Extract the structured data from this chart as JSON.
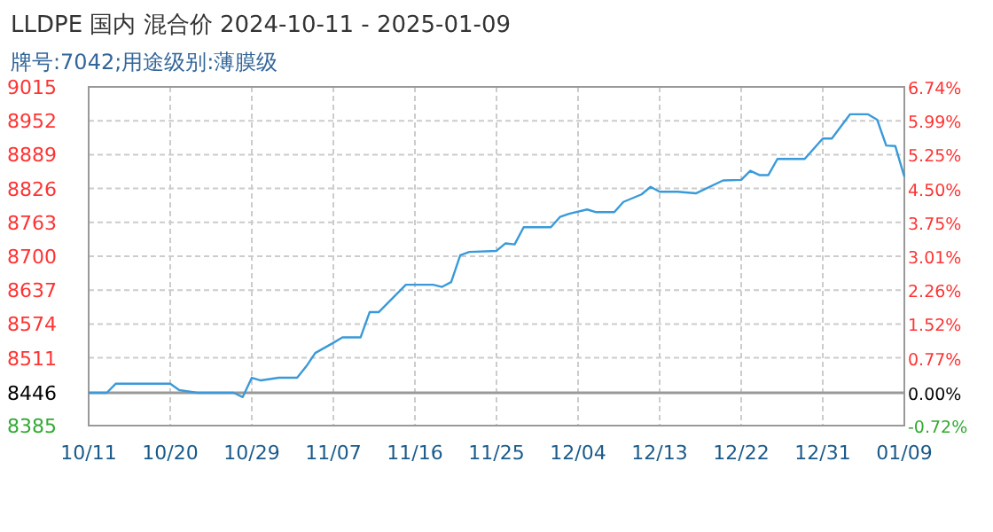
{
  "chart_data": {
    "type": "line",
    "title": "LLDPE 国内 混合价 2024-10-11 - 2025-01-09",
    "subtitle": "牌号:7042;用途级别:薄膜级",
    "x": [
      "2024-10-11",
      "2024-10-13",
      "2024-10-14",
      "2024-10-20",
      "2024-10-21",
      "2024-10-23",
      "2024-10-27",
      "2024-10-28",
      "2024-10-29",
      "2024-10-30",
      "2024-11-01",
      "2024-11-03",
      "2024-11-04",
      "2024-11-05",
      "2024-11-07",
      "2024-11-08",
      "2024-11-10",
      "2024-11-11",
      "2024-11-12",
      "2024-11-15",
      "2024-11-18",
      "2024-11-19",
      "2024-11-20",
      "2024-11-21",
      "2024-11-22",
      "2024-11-25",
      "2024-11-26",
      "2024-11-27",
      "2024-11-28",
      "2024-12-01",
      "2024-12-02",
      "2024-12-03",
      "2024-12-05",
      "2024-12-06",
      "2024-12-08",
      "2024-12-09",
      "2024-12-11",
      "2024-12-12",
      "2024-12-13",
      "2024-12-15",
      "2024-12-17",
      "2024-12-20",
      "2024-12-22",
      "2024-12-23",
      "2024-12-24",
      "2024-12-25",
      "2024-12-26",
      "2024-12-29",
      "2024-12-31",
      "2025-01-01",
      "2025-01-03",
      "2025-01-05",
      "2025-01-06",
      "2025-01-07",
      "2025-01-08",
      "2025-01-09"
    ],
    "series": [
      {
        "color": "#3a9ad9",
        "values": [
          8446,
          8446,
          8463,
          8463,
          8451,
          8446,
          8446,
          8438,
          8474,
          8469,
          8474,
          8474,
          8495,
          8520,
          8539,
          8549,
          8549,
          8596,
          8596,
          8647,
          8647,
          8643,
          8652,
          8702,
          8708,
          8710,
          8724,
          8722,
          8754,
          8754,
          8773,
          8779,
          8787,
          8782,
          8782,
          8801,
          8815,
          8829,
          8820,
          8820,
          8817,
          8841,
          8842,
          8859,
          8851,
          8851,
          8881,
          8881,
          8919,
          8919,
          8964,
          8964,
          8954,
          8906,
          8905,
          8848
        ]
      }
    ],
    "xlim": [
      "2024-10-11",
      "2025-01-09"
    ],
    "xticks": [
      {
        "value": "2024-10-11",
        "label": "10/11"
      },
      {
        "value": "2024-10-20",
        "label": "10/20"
      },
      {
        "value": "2024-10-29",
        "label": "10/29"
      },
      {
        "value": "2024-11-07",
        "label": "11/07"
      },
      {
        "value": "2024-11-16",
        "label": "11/16"
      },
      {
        "value": "2024-11-25",
        "label": "11/25"
      },
      {
        "value": "2024-12-04",
        "label": "12/04"
      },
      {
        "value": "2024-12-13",
        "label": "12/13"
      },
      {
        "value": "2024-12-22",
        "label": "12/22"
      },
      {
        "value": "2024-12-31",
        "label": "12/31"
      },
      {
        "value": "2025-01-09",
        "label": "01/09"
      }
    ],
    "ylim": [
      8385,
      9015
    ],
    "yticks": [
      8385,
      8446,
      8511,
      8574,
      8637,
      8700,
      8763,
      8826,
      8889,
      8952,
      9015
    ],
    "y2lim": [
      -0.72,
      6.74
    ],
    "y2ticks": [
      {
        "value": -0.72,
        "label": "-0.72%"
      },
      {
        "value": 0,
        "label": "0.00%"
      },
      {
        "value": 0.77,
        "label": "0.77%"
      },
      {
        "value": 1.52,
        "label": "1.52%"
      },
      {
        "value": 2.26,
        "label": "2.26%"
      },
      {
        "value": 3.01,
        "label": "3.01%"
      },
      {
        "value": 3.75,
        "label": "3.75%"
      },
      {
        "value": 4.5,
        "label": "4.50%"
      },
      {
        "value": 5.25,
        "label": "5.25%"
      },
      {
        "value": 5.99,
        "label": "5.99%"
      },
      {
        "value": 6.74,
        "label": "6.74%"
      }
    ],
    "grid": true,
    "ref_lines": [
      {
        "axis": "y",
        "value": 8446,
        "color": "#999999"
      }
    ]
  }
}
